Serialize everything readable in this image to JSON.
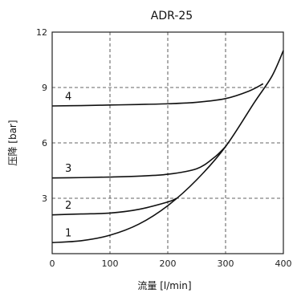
{
  "chart_data": {
    "type": "line",
    "title": "ADR-25",
    "xlabel": "流量 [l/min]",
    "ylabel": "压降 [bar]",
    "xlim": [
      0,
      400
    ],
    "ylim": [
      0,
      12
    ],
    "x_ticks": [
      "0",
      "100",
      "200",
      "300",
      "400"
    ],
    "y_ticks": [
      "3",
      "6",
      "9",
      "12"
    ],
    "grid": true,
    "series": [
      {
        "name": "1",
        "points": [
          [
            0,
            0.6
          ],
          [
            50,
            0.7
          ],
          [
            100,
            1.0
          ],
          [
            150,
            1.6
          ],
          [
            200,
            2.6
          ],
          [
            250,
            4.0
          ],
          [
            300,
            5.8
          ],
          [
            350,
            8.2
          ],
          [
            380,
            9.6
          ],
          [
            400,
            11.0
          ]
        ]
      },
      {
        "name": "2",
        "points": [
          [
            0,
            2.1
          ],
          [
            50,
            2.15
          ],
          [
            100,
            2.2
          ],
          [
            150,
            2.4
          ],
          [
            200,
            2.8
          ],
          [
            215,
            3.0
          ]
        ]
      },
      {
        "name": "3",
        "points": [
          [
            0,
            4.1
          ],
          [
            50,
            4.12
          ],
          [
            100,
            4.15
          ],
          [
            150,
            4.2
          ],
          [
            200,
            4.3
          ],
          [
            250,
            4.6
          ],
          [
            280,
            5.2
          ],
          [
            300,
            5.8
          ]
        ]
      },
      {
        "name": "4",
        "points": [
          [
            0,
            8.0
          ],
          [
            50,
            8.02
          ],
          [
            100,
            8.05
          ],
          [
            150,
            8.08
          ],
          [
            200,
            8.12
          ],
          [
            250,
            8.2
          ],
          [
            300,
            8.4
          ],
          [
            340,
            8.8
          ],
          [
            365,
            9.2
          ]
        ]
      }
    ],
    "curve_labels": [
      {
        "text": "1",
        "x": 28,
        "y": 0.8
      },
      {
        "text": "2",
        "x": 28,
        "y": 2.3
      },
      {
        "text": "3",
        "x": 28,
        "y": 4.3
      },
      {
        "text": "4",
        "x": 28,
        "y": 8.2
      }
    ]
  }
}
